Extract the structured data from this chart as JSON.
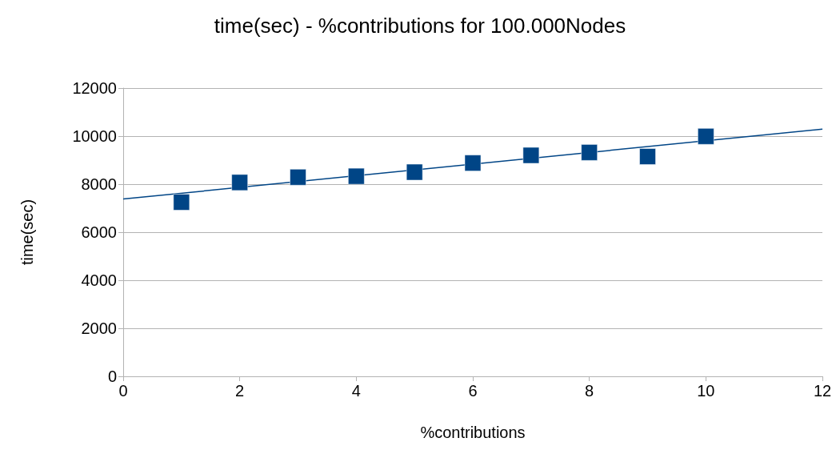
{
  "chart_data": {
    "type": "scatter",
    "title": "time(sec) - %contributions for 100.000Nodes",
    "xlabel": "%contributions",
    "ylabel": "time(sec)",
    "xlim": [
      0,
      12
    ],
    "xticks": [
      0,
      2,
      4,
      6,
      8,
      10,
      12
    ],
    "ylim": [
      0,
      12000
    ],
    "yticks": [
      0,
      2000,
      4000,
      6000,
      8000,
      10000,
      12000
    ],
    "grid": "y",
    "marker": "square",
    "series": [
      {
        "type": "scatter",
        "color": "#004586",
        "x": [
          1,
          2,
          3,
          4,
          5,
          6,
          7,
          8,
          9,
          10
        ],
        "values": [
          7250,
          8070,
          8290,
          8330,
          8500,
          8880,
          9200,
          9320,
          9150,
          9990
        ]
      },
      {
        "type": "line",
        "color": "#004586",
        "marker": "none",
        "line_style": "solid",
        "x": [
          0,
          12
        ],
        "values": [
          7380,
          10290
        ]
      }
    ]
  }
}
